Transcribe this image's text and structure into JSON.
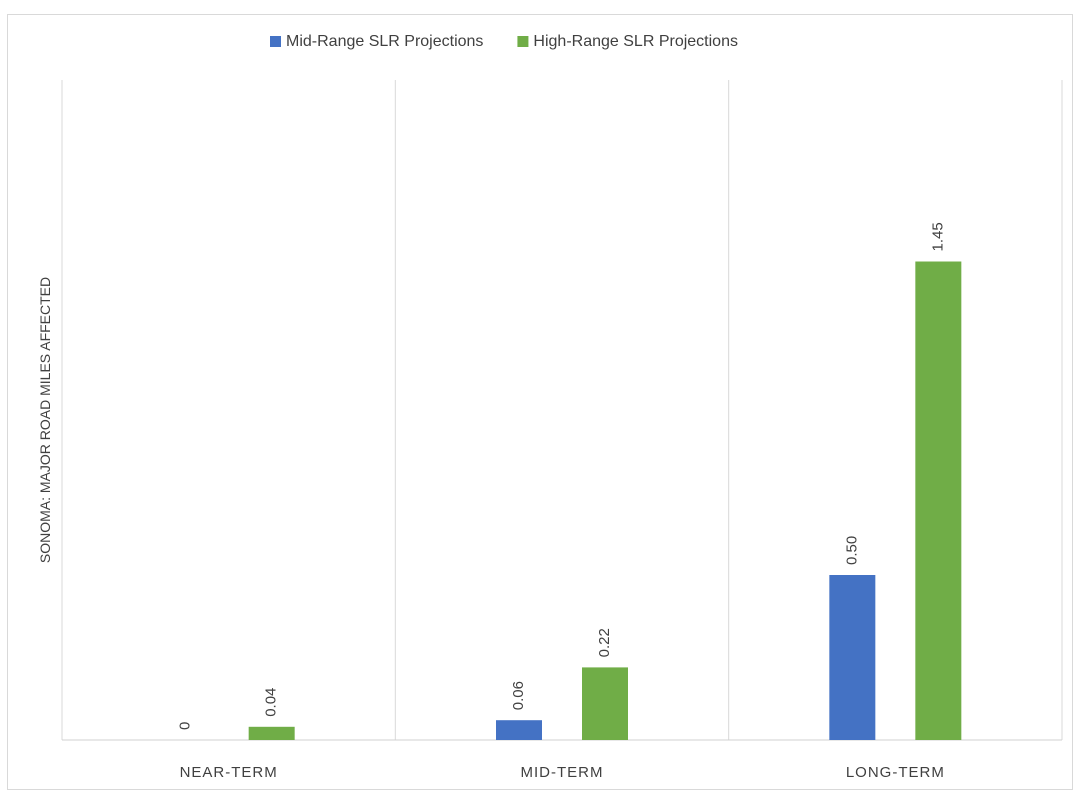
{
  "chart_data": {
    "type": "bar",
    "ylabel": "SONOMA: MAJOR ROAD MILES AFFECTED",
    "xlabel": "",
    "categories": [
      "NEAR-TERM",
      "MID-TERM",
      "LONG-TERM"
    ],
    "series": [
      {
        "name": "Mid-Range SLR Projections",
        "color": "#4472c4",
        "values": [
          0,
          0.06,
          0.5
        ],
        "labels": [
          "0",
          "0.06",
          "0.50"
        ]
      },
      {
        "name": "High-Range SLR Projections",
        "color": "#70ad47",
        "values": [
          0.04,
          0.22,
          1.45
        ],
        "labels": [
          "0.04",
          "0.22",
          "1.45"
        ]
      }
    ],
    "ylim": [
      0,
      2.0
    ],
    "legend_position": "top",
    "grid": "vertical category separators"
  }
}
